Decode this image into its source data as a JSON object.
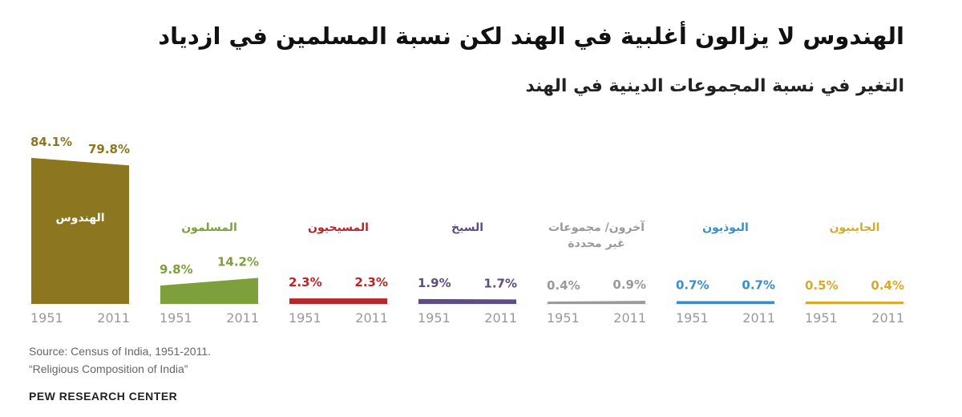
{
  "chart_data": {
    "type": "area",
    "title": "الهندوس لا يزالون أغلبية في الهند لكن نسبة المسلمين في ازدياد",
    "subtitle": "التغير في نسبة المجموعات الدينية في الهند",
    "x": [
      1951,
      2011
    ],
    "series": [
      {
        "name": "الهندوس",
        "color": "#8c7620",
        "values": [
          84.1,
          79.8
        ],
        "value_labels": [
          "84.1%",
          "79.8%"
        ]
      },
      {
        "name": "المسلمون",
        "color": "#7ea03c",
        "values": [
          9.8,
          14.2
        ],
        "value_labels": [
          "9.8%",
          "14.2%"
        ]
      },
      {
        "name": "المسيحيون",
        "color": "#b3282b",
        "values": [
          2.3,
          2.3
        ],
        "value_labels": [
          "2.3%",
          "2.3%"
        ]
      },
      {
        "name": "السيخ",
        "color": "#5e4d82",
        "values": [
          1.9,
          1.7
        ],
        "value_labels": [
          "1.9%",
          "1.7%"
        ]
      },
      {
        "name": "آخرون/ مجموعات غير محددة",
        "color": "#9a9a9a",
        "values": [
          0.4,
          0.9
        ],
        "value_labels": [
          "0.4%",
          "0.9%"
        ]
      },
      {
        "name": "البوذيون",
        "color": "#3a8fc7",
        "values": [
          0.7,
          0.7
        ],
        "value_labels": [
          "0.7%",
          "0.7%"
        ]
      },
      {
        "name": "الجاينيون",
        "color": "#d9aa2a",
        "values": [
          0.5,
          0.4
        ],
        "value_labels": [
          "0.5%",
          "0.4%"
        ]
      }
    ],
    "notes": [
      "Source: Census of India, 1951-2011.",
      "“Religious Composition of India”"
    ],
    "footer": "PEW RESEARCH CENTER"
  }
}
